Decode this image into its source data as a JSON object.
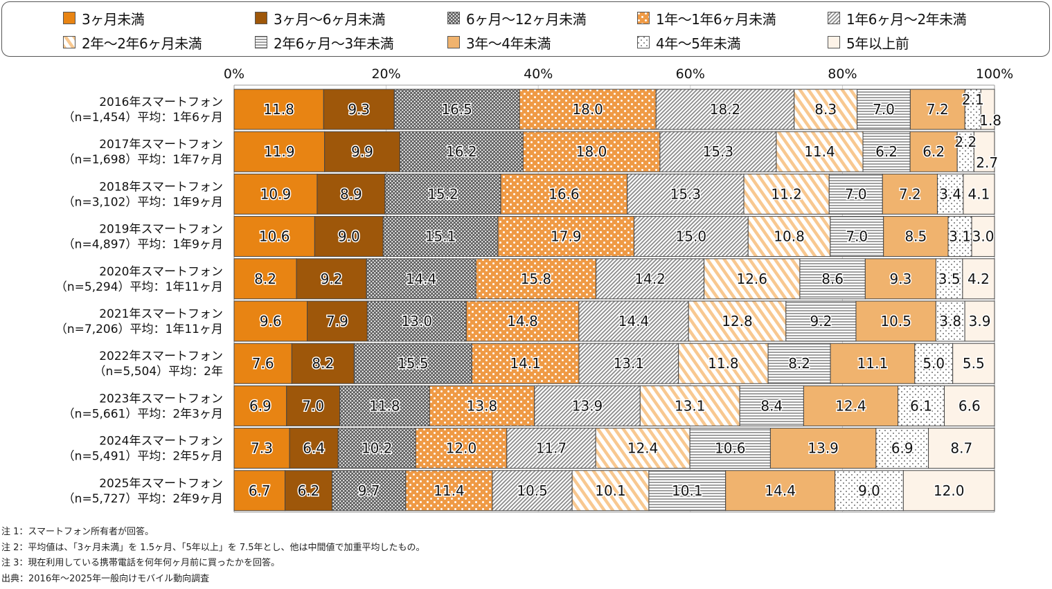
{
  "chart_data": {
    "type": "bar",
    "orientation": "horizontal",
    "stacked": "percent",
    "xlim": [
      0,
      100
    ],
    "x_ticks": [
      "0%",
      "20%",
      "40%",
      "60%",
      "80%",
      "100%"
    ],
    "grid": true,
    "legend_position": "top",
    "categories": [
      {
        "line1": "2016年スマートフォン",
        "line2": "（n=1,454）平均：1年6ヶ月"
      },
      {
        "line1": "2017年スマートフォン",
        "line2": "（n=1,698）平均：1年7ヶ月"
      },
      {
        "line1": "2018年スマートフォン",
        "line2": "（n=3,102）平均：1年9ヶ月"
      },
      {
        "line1": "2019年スマートフォン",
        "line2": "（n=4,897）平均：1年9ヶ月"
      },
      {
        "line1": "2020年スマートフォン",
        "line2": "（n=5,294）平均：1年11ヶ月"
      },
      {
        "line1": "2021年スマートフォン",
        "line2": "（n=7,206）平均：1年11ヶ月"
      },
      {
        "line1": "2022年スマートフォン",
        "line2": "（n=5,504）平均：2年"
      },
      {
        "line1": "2023年スマートフォン",
        "line2": "（n=5,661）平均：2年3ヶ月"
      },
      {
        "line1": "2024年スマートフォン",
        "line2": "（n=5,491）平均：2年5ヶ月"
      },
      {
        "line1": "2025年スマートフォン",
        "line2": "（n=5,727）平均：2年9ヶ月"
      }
    ],
    "series": [
      {
        "name": "3ヶ月未満",
        "pattern": "solid",
        "color": "#E88413",
        "values": [
          11.8,
          11.9,
          10.9,
          10.6,
          8.2,
          9.6,
          7.6,
          6.9,
          7.3,
          6.7
        ]
      },
      {
        "name": "3ヶ月〜6ヶ月未満",
        "pattern": "solid",
        "color": "#9E570A",
        "values": [
          9.3,
          9.9,
          8.9,
          9.0,
          9.2,
          7.9,
          8.2,
          7.0,
          6.4,
          6.2
        ]
      },
      {
        "name": "6ヶ月〜12ヶ月未満",
        "pattern": "crosshatch",
        "color": "#6b6b6b",
        "values": [
          16.5,
          16.2,
          15.2,
          15.1,
          14.4,
          13.0,
          15.5,
          11.8,
          10.2,
          9.7
        ]
      },
      {
        "name": "1年〜1年6ヶ月未満",
        "pattern": "dots-on-orange",
        "color": "#F0A050",
        "values": [
          18.0,
          18.0,
          16.6,
          17.9,
          15.8,
          14.8,
          14.1,
          13.8,
          12.0,
          11.4
        ]
      },
      {
        "name": "1年6ヶ月〜2年未満",
        "pattern": "diagonal-gray",
        "color": "#8a8a8a",
        "values": [
          18.2,
          15.3,
          15.3,
          15.0,
          14.2,
          14.4,
          13.1,
          13.9,
          11.7,
          10.5
        ]
      },
      {
        "name": "2年〜2年6ヶ月未満",
        "pattern": "diagonal-peach",
        "color": "#F8C890",
        "values": [
          8.3,
          11.4,
          11.2,
          10.8,
          12.6,
          12.8,
          11.8,
          13.1,
          12.4,
          10.1
        ]
      },
      {
        "name": "2年6ヶ月〜3年未満",
        "pattern": "horizontal-stripes",
        "color": "#9a9a9a",
        "values": [
          7.0,
          6.2,
          7.0,
          7.0,
          8.6,
          9.2,
          8.2,
          8.4,
          10.6,
          10.1
        ]
      },
      {
        "name": "3年〜4年未満",
        "pattern": "solid",
        "color": "#F0B36E",
        "values": [
          7.2,
          6.2,
          7.2,
          8.5,
          9.3,
          10.5,
          11.1,
          12.4,
          13.9,
          14.4
        ]
      },
      {
        "name": "4年〜5年未満",
        "pattern": "sparse-dots",
        "color": "#555555",
        "values": [
          2.1,
          2.2,
          3.4,
          3.1,
          3.5,
          3.8,
          5.0,
          6.1,
          6.9,
          9.0
        ]
      },
      {
        "name": "5年以上前",
        "pattern": "solid",
        "color": "#FDF3E8",
        "values": [
          1.8,
          2.7,
          4.1,
          3.0,
          4.2,
          3.9,
          5.5,
          6.6,
          8.7,
          12.0
        ]
      }
    ]
  },
  "notes": [
    "注 1：スマートフォン所有者が回答。",
    "注 2：平均値は、「3ヶ月未満」を 1.5ヶ月、「5年以上」を 7.5年とし、他は中間値で加重平均したもの。",
    "注 3：現在利用している携帯電話を何年何ヶ月前に買ったかを回答。",
    "出典：2016年〜2025年一般向けモバイル動向調査"
  ]
}
